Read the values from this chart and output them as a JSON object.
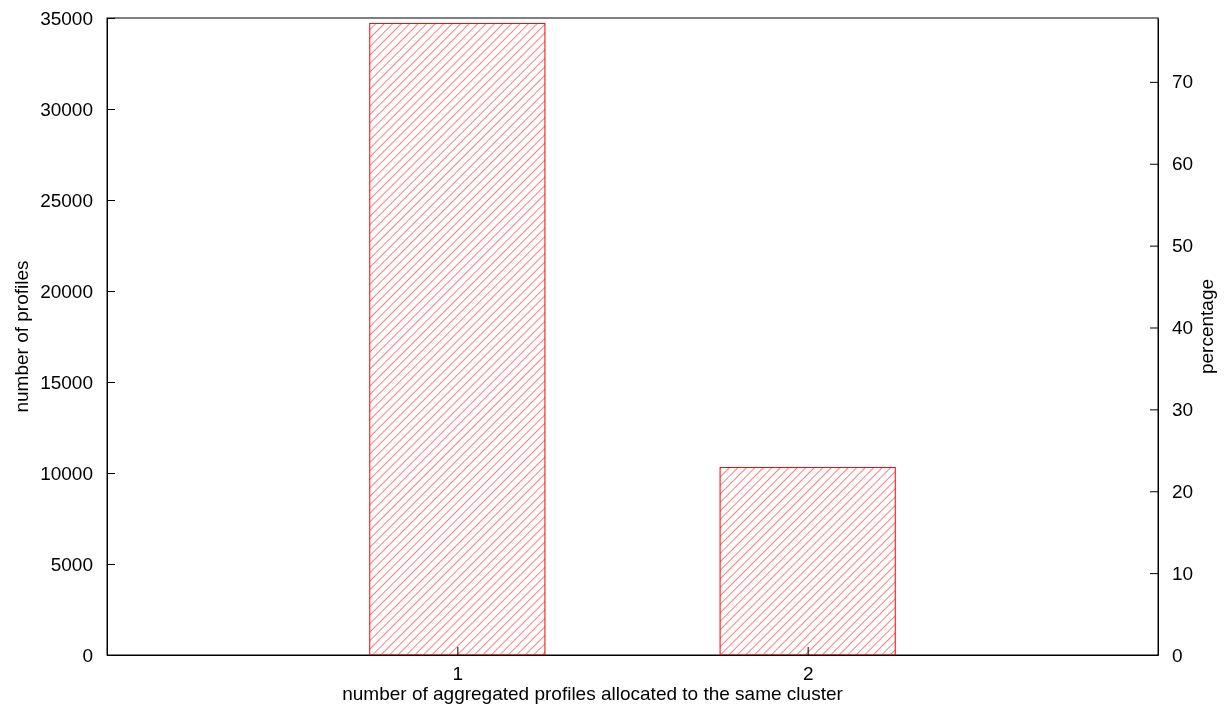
{
  "chart_data": {
    "type": "bar",
    "xlabel": "number of aggregated profiles allocated to the same cluster",
    "ylabel": "number of profiles",
    "y2label": "percentage",
    "categories": [
      "1",
      "2"
    ],
    "values": [
      34700,
      10300
    ],
    "color": "#ff0000",
    "ylim": [
      0,
      35000
    ],
    "yticks": [
      0,
      5000,
      10000,
      15000,
      20000,
      25000,
      30000,
      35000
    ],
    "y2lim": [
      0,
      77.8
    ],
    "y2ticks": [
      0,
      10,
      20,
      30,
      40,
      50,
      60,
      70
    ],
    "grid": false
  }
}
